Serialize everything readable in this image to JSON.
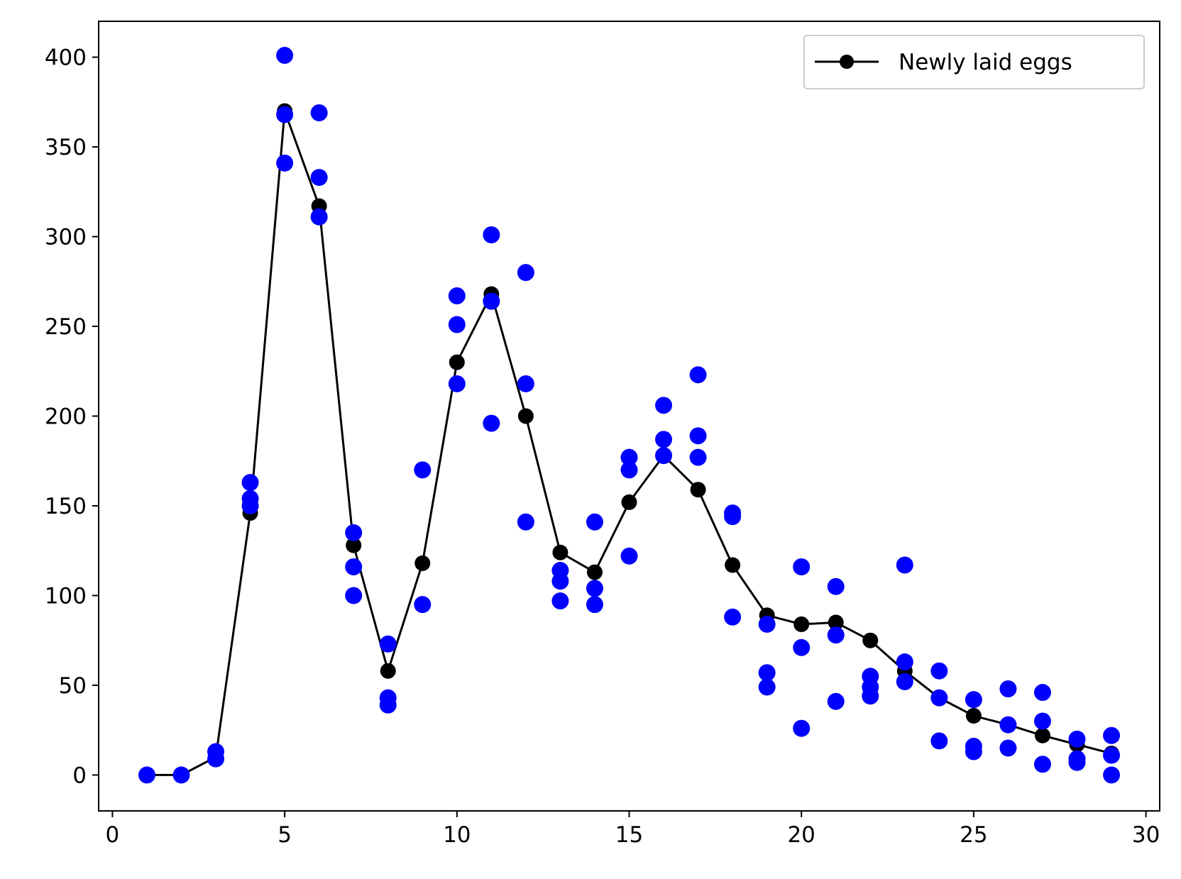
{
  "chart_data": {
    "type": "line",
    "title": "",
    "xlabel": "",
    "ylabel": "",
    "xlim": [
      -0.4,
      30.4
    ],
    "ylim": [
      -20,
      420
    ],
    "x_ticks": [
      0,
      5,
      10,
      15,
      20,
      25,
      30
    ],
    "y_ticks": [
      0,
      50,
      100,
      150,
      200,
      250,
      300,
      350,
      400
    ],
    "grid": false,
    "legend": {
      "placement": "top-right",
      "entries": [
        {
          "label": "Newly laid eggs",
          "color": "#000000",
          "marker": "circle",
          "line": "solid"
        }
      ]
    },
    "series": [
      {
        "name": "Newly laid eggs",
        "style": "line+markers",
        "color": "#000000",
        "x": [
          1,
          2,
          3,
          4,
          5,
          6,
          7,
          8,
          9,
          10,
          11,
          12,
          13,
          14,
          15,
          16,
          17,
          18,
          19,
          20,
          21,
          22,
          23,
          24,
          25,
          26,
          27,
          28,
          29
        ],
        "y": [
          0,
          0,
          10,
          146,
          370,
          317,
          128,
          58,
          118,
          230,
          268,
          200,
          124,
          113,
          152,
          178,
          159,
          117,
          89,
          84,
          85,
          75,
          58,
          43,
          33,
          28,
          22,
          17,
          12
        ]
      },
      {
        "style": "scatter",
        "color": "#0000ff",
        "points": [
          [
            1,
            0
          ],
          [
            2,
            0
          ],
          [
            3,
            13
          ],
          [
            3,
            9
          ],
          [
            4,
            163
          ],
          [
            4,
            154
          ],
          [
            4,
            150
          ],
          [
            5,
            401
          ],
          [
            5,
            368
          ],
          [
            5,
            341
          ],
          [
            6,
            369
          ],
          [
            6,
            333
          ],
          [
            6,
            311
          ],
          [
            7,
            135
          ],
          [
            7,
            116
          ],
          [
            7,
            100
          ],
          [
            8,
            73
          ],
          [
            8,
            43
          ],
          [
            8,
            39
          ],
          [
            9,
            170
          ],
          [
            9,
            95
          ],
          [
            10,
            267
          ],
          [
            10,
            251
          ],
          [
            10,
            218
          ],
          [
            11,
            301
          ],
          [
            11,
            264
          ],
          [
            11,
            196
          ],
          [
            12,
            280
          ],
          [
            12,
            218
          ],
          [
            12,
            141
          ],
          [
            13,
            114
          ],
          [
            13,
            108
          ],
          [
            13,
            97
          ],
          [
            14,
            141
          ],
          [
            14,
            104
          ],
          [
            14,
            95
          ],
          [
            15,
            177
          ],
          [
            15,
            170
          ],
          [
            15,
            122
          ],
          [
            16,
            206
          ],
          [
            16,
            187
          ],
          [
            16,
            178
          ],
          [
            17,
            223
          ],
          [
            17,
            189
          ],
          [
            17,
            177
          ],
          [
            18,
            146
          ],
          [
            18,
            144
          ],
          [
            18,
            88
          ],
          [
            19,
            84
          ],
          [
            19,
            57
          ],
          [
            19,
            49
          ],
          [
            20,
            116
          ],
          [
            20,
            71
          ],
          [
            20,
            26
          ],
          [
            21,
            105
          ],
          [
            21,
            78
          ],
          [
            21,
            41
          ],
          [
            22,
            55
          ],
          [
            22,
            49
          ],
          [
            22,
            44
          ],
          [
            23,
            117
          ],
          [
            23,
            63
          ],
          [
            23,
            52
          ],
          [
            24,
            58
          ],
          [
            24,
            43
          ],
          [
            24,
            19
          ],
          [
            25,
            42
          ],
          [
            25,
            16
          ],
          [
            25,
            13
          ],
          [
            26,
            48
          ],
          [
            26,
            28
          ],
          [
            26,
            15
          ],
          [
            27,
            46
          ],
          [
            27,
            30
          ],
          [
            27,
            6
          ],
          [
            28,
            20
          ],
          [
            28,
            9
          ],
          [
            28,
            7
          ],
          [
            29,
            22
          ],
          [
            29,
            11
          ],
          [
            29,
            0
          ]
        ]
      }
    ]
  }
}
